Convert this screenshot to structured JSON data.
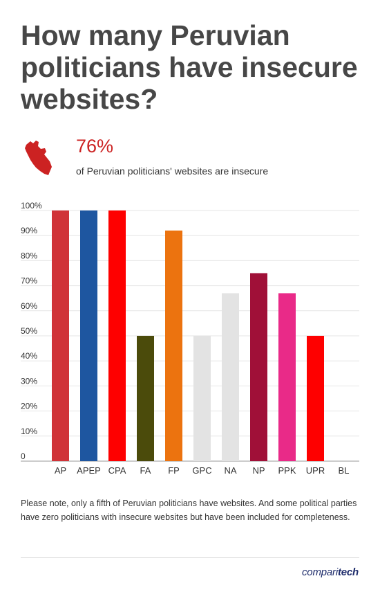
{
  "title": "How many Peruvian politicians have insecure websites?",
  "stat": {
    "icon": "peru-map-icon",
    "value": "76%",
    "text": "of Peruvian politicians' websites are insecure",
    "color": "#cc2222"
  },
  "chart_data": {
    "type": "bar",
    "categories": [
      "AP",
      "APEP",
      "CPA",
      "FA",
      "FP",
      "GPC",
      "NA",
      "NP",
      "PPK",
      "UPR",
      "BL"
    ],
    "values": [
      100,
      100,
      100,
      50,
      92,
      50,
      67,
      75,
      67,
      50,
      0
    ],
    "colors": [
      "#d03338",
      "#1e56a0",
      "#fe0000",
      "#4b4b0b",
      "#ec730f",
      "#e3e3e3",
      "#e3e3e3",
      "#a01038",
      "#e92a88",
      "#fe0000",
      "#cccccc"
    ],
    "ylim": [
      0,
      100
    ],
    "yticks": [
      "0",
      "10%",
      "20%",
      "30%",
      "40%",
      "50%",
      "60%",
      "70%",
      "80%",
      "90%",
      "100%"
    ],
    "grid": true
  },
  "note": "Please note, only a fifth of Peruvian politicians have websites. And some political parties have zero politicians with insecure websites but have been included for completeness.",
  "logo": {
    "part1": "compari",
    "part2": "tech"
  }
}
